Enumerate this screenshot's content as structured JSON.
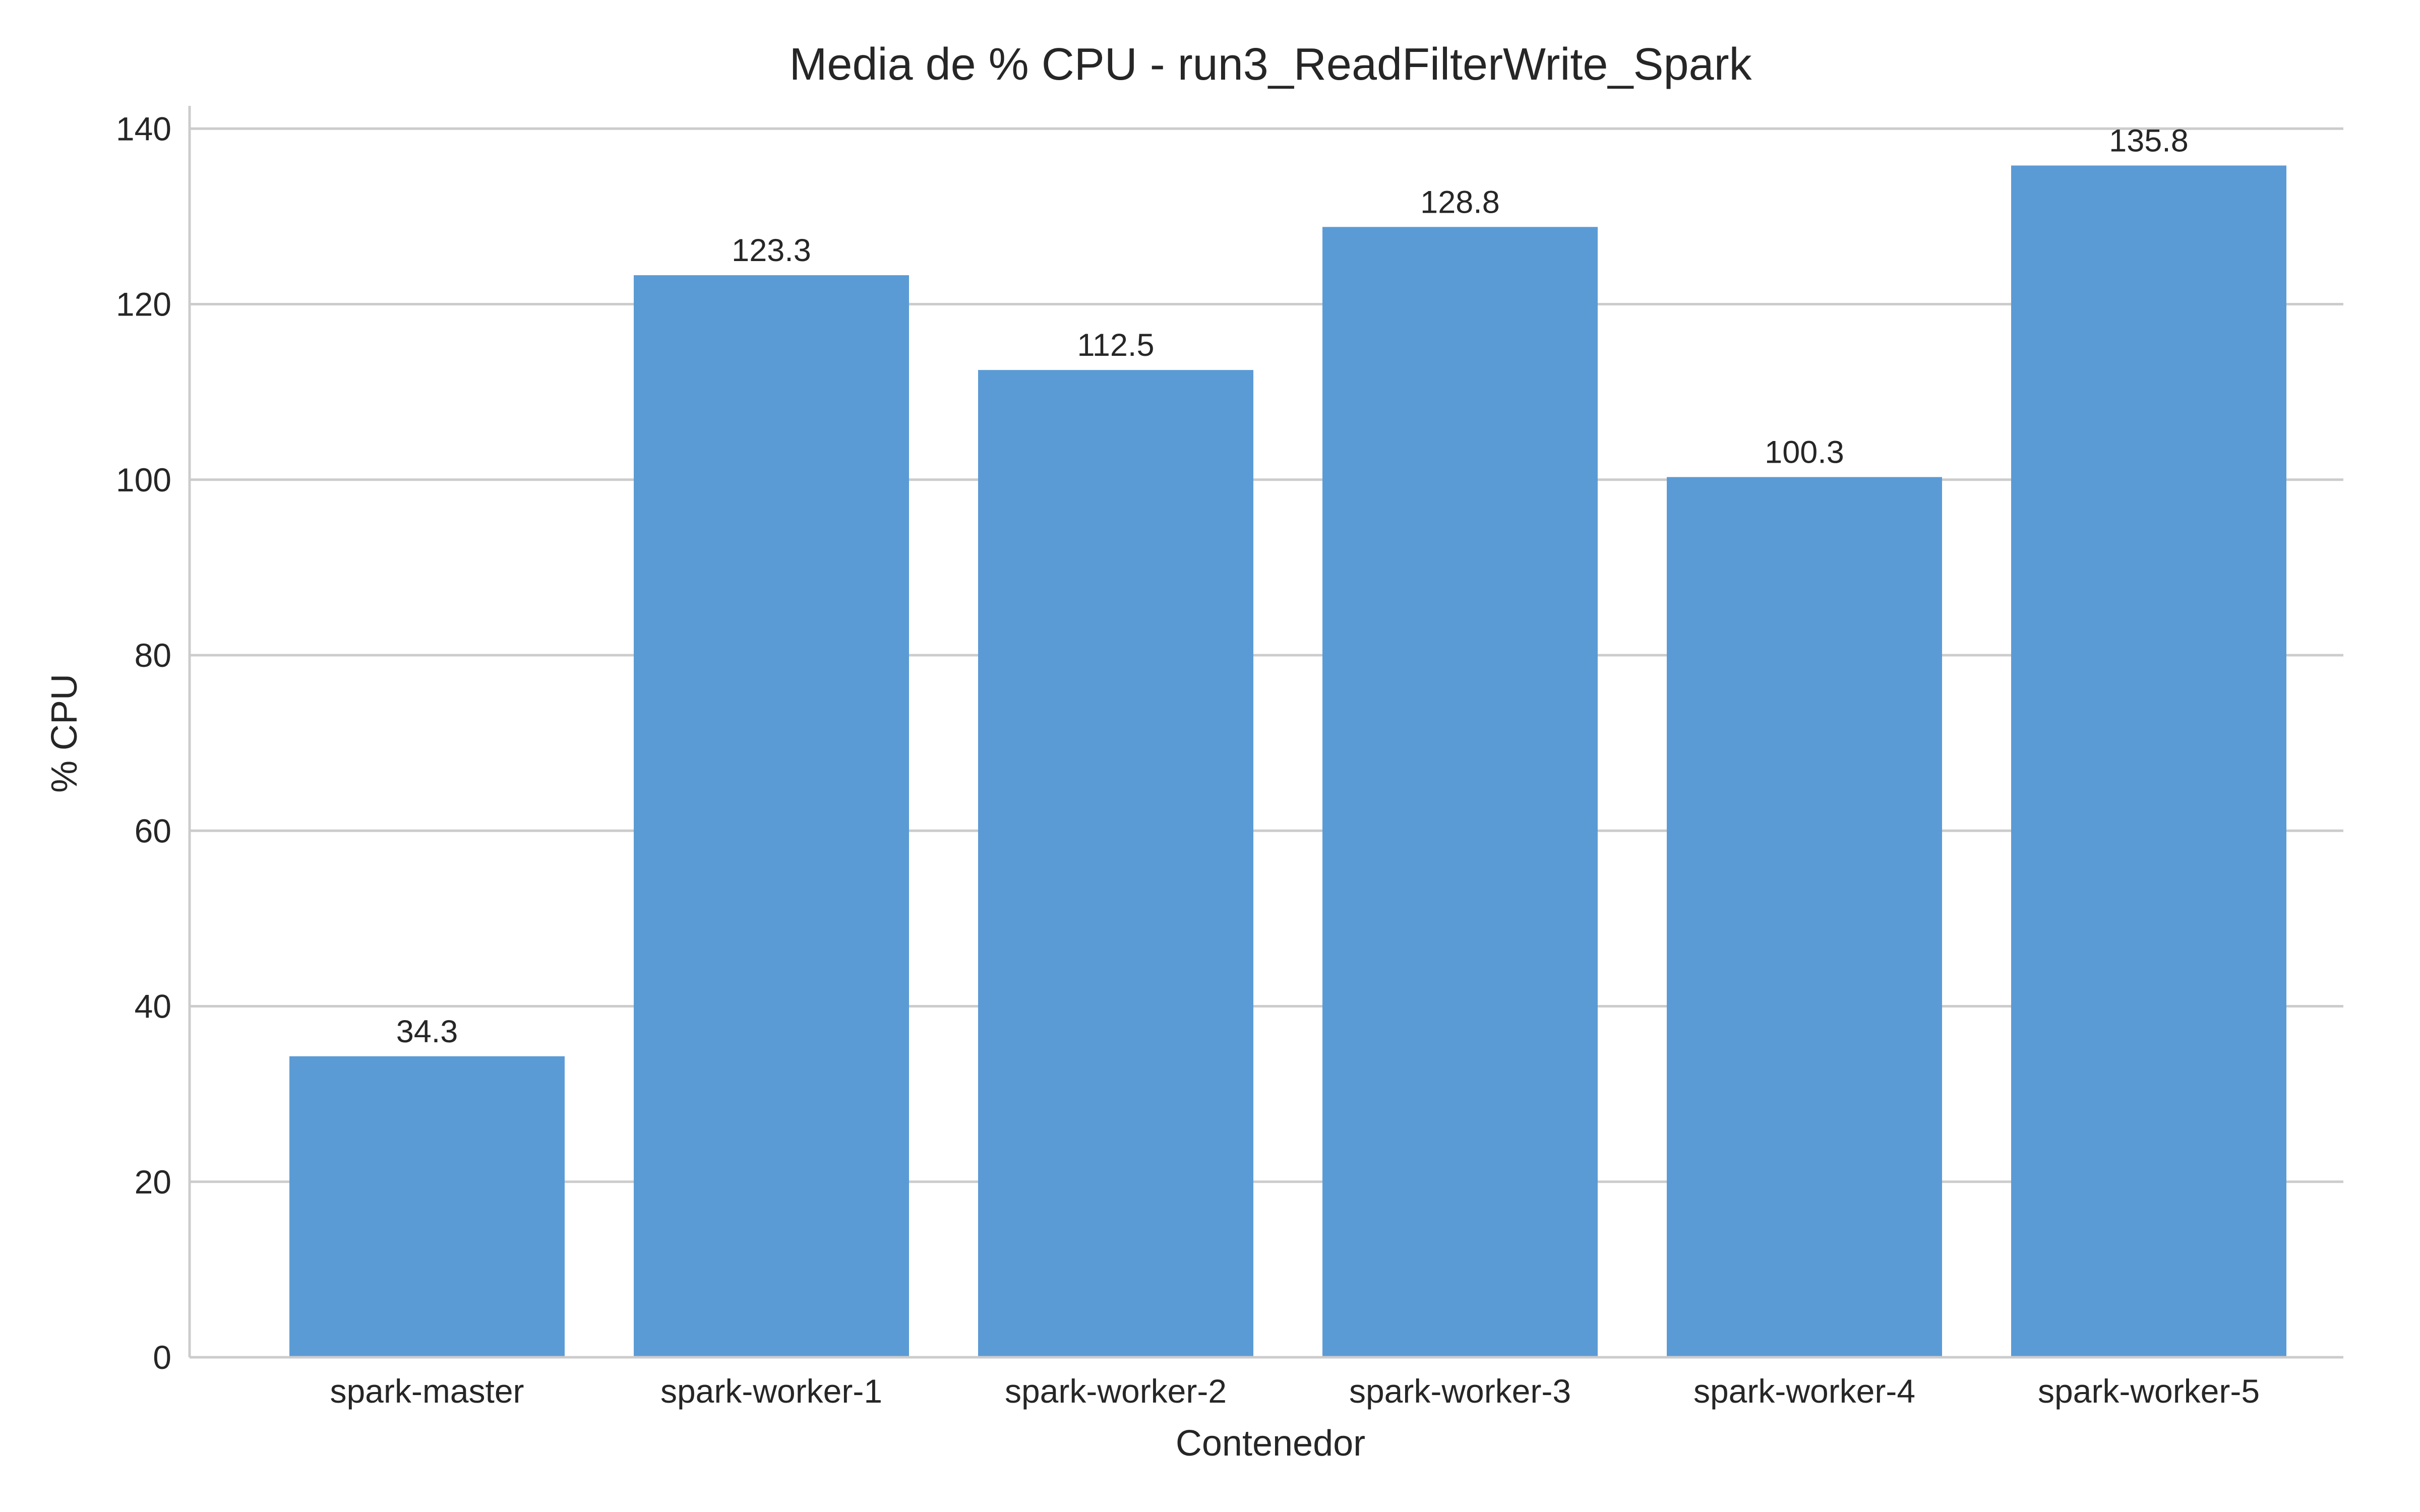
{
  "chart_data": {
    "type": "bar",
    "title": "Media de % CPU - run3_ReadFilterWrite_Spark",
    "xlabel": "Contenedor",
    "ylabel": "% CPU",
    "categories": [
      "spark-master",
      "spark-worker-1",
      "spark-worker-2",
      "spark-worker-3",
      "spark-worker-4",
      "spark-worker-5"
    ],
    "values": [
      34.3,
      123.3,
      112.5,
      128.8,
      100.3,
      135.8
    ],
    "data_labels": [
      "34.3",
      "123.3",
      "112.5",
      "128.8",
      "100.3",
      "135.8"
    ],
    "yticks": [
      0,
      20,
      40,
      60,
      80,
      100,
      120,
      140
    ],
    "ytick_labels": [
      "0",
      "20",
      "40",
      "60",
      "80",
      "100",
      "120",
      "140"
    ],
    "ylim": [
      0,
      142.6
    ],
    "grid": "horizontal",
    "legend": "none",
    "colors": {
      "bar": "#5b9bd5",
      "grid": "#cccccc",
      "axis": "#cccccc",
      "text": "#262626"
    }
  }
}
